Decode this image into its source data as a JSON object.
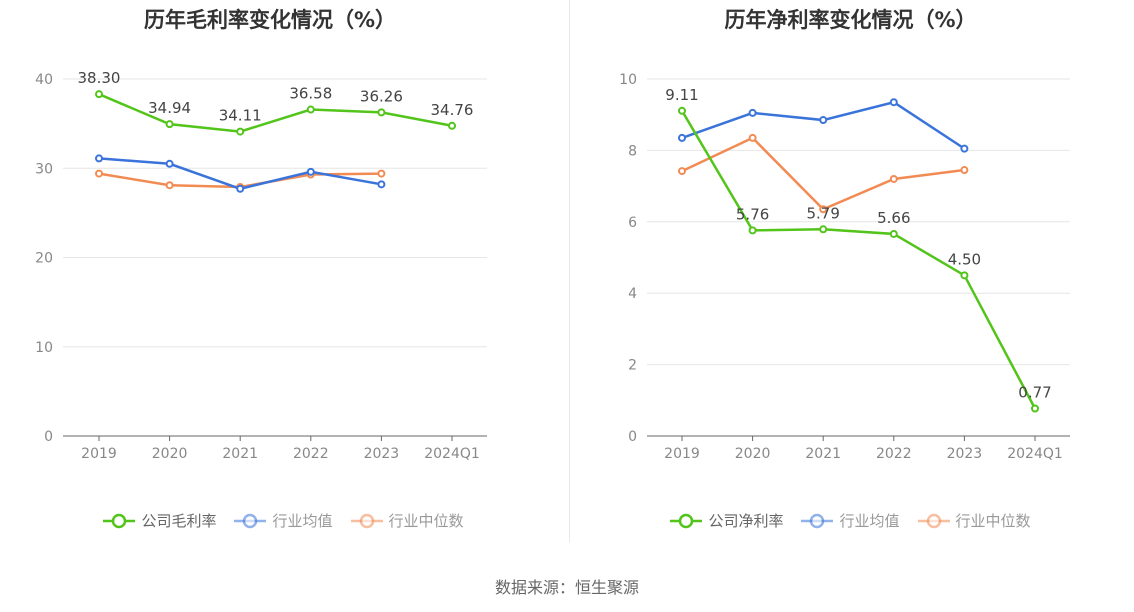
{
  "source": "数据来源：恒生聚源",
  "chart_data": [
    {
      "type": "line",
      "title": "历年毛利率变化情况（%）",
      "categories": [
        "2019",
        "2020",
        "2021",
        "2022",
        "2023",
        "2024Q1"
      ],
      "ylim": [
        0,
        40
      ],
      "yticks": [
        0,
        10,
        20,
        30,
        40
      ],
      "grid": true,
      "legend_position": "bottom",
      "series": [
        {
          "name": "公司毛利率",
          "color": "#52c41a",
          "values": [
            38.3,
            34.94,
            34.11,
            36.58,
            36.26,
            34.76
          ],
          "labels": [
            "38.30",
            "34.94",
            "34.11",
            "36.58",
            "36.26",
            "34.76"
          ]
        },
        {
          "name": "行业均值",
          "color": "#3a74db",
          "values": [
            31.1,
            30.5,
            27.7,
            29.6,
            28.2,
            null
          ]
        },
        {
          "name": "行业中位数",
          "color": "#f28b53",
          "values": [
            29.4,
            28.1,
            27.9,
            29.3,
            29.4,
            null
          ]
        }
      ]
    },
    {
      "type": "line",
      "title": "历年净利率变化情况（%）",
      "categories": [
        "2019",
        "2020",
        "2021",
        "2022",
        "2023",
        "2024Q1"
      ],
      "ylim": [
        0,
        10
      ],
      "yticks": [
        0,
        2,
        4,
        6,
        8,
        10
      ],
      "grid": true,
      "legend_position": "bottom",
      "series": [
        {
          "name": "公司净利率",
          "color": "#52c41a",
          "values": [
            9.11,
            5.76,
            5.79,
            5.66,
            4.5,
            0.77
          ],
          "labels": [
            "9.11",
            "5.76",
            "5.79",
            "5.66",
            "4.50",
            "0.77"
          ]
        },
        {
          "name": "行业均值",
          "color": "#3a74db",
          "values": [
            8.35,
            9.05,
            8.85,
            9.35,
            8.05,
            null
          ]
        },
        {
          "name": "行业中位数",
          "color": "#f28b53",
          "values": [
            7.42,
            8.35,
            6.35,
            7.2,
            7.45,
            null
          ]
        }
      ]
    }
  ]
}
